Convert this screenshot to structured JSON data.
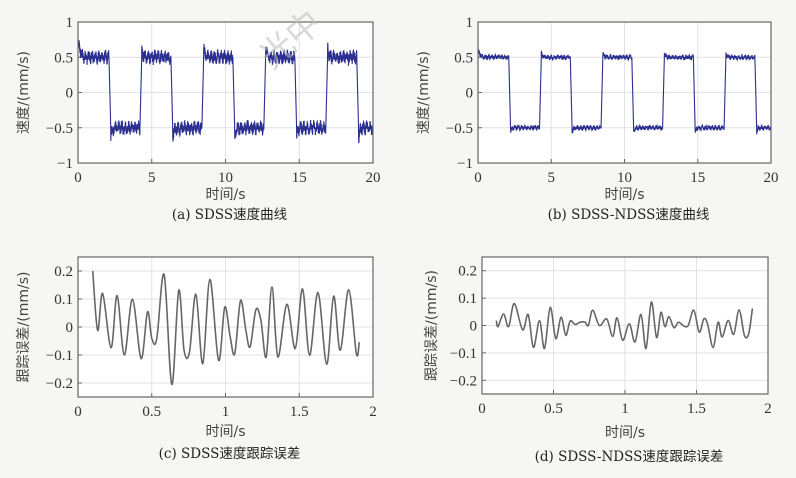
{
  "watermark": "光中",
  "chart_data": [
    {
      "id": "a",
      "type": "line",
      "caption": "(a) SDSS速度曲线",
      "xlabel": "时间/s",
      "ylabel": "速度/(mm/s)",
      "xlim": [
        0,
        20
      ],
      "ylim": [
        -1,
        1
      ],
      "xticks": [
        0,
        5,
        10,
        15,
        20
      ],
      "xtick_labels": [
        "0",
        "5",
        "10",
        "15",
        "20"
      ],
      "yticks": [
        1,
        0.5,
        0,
        -0.5,
        -1
      ],
      "ytick_labels": [
        "1",
        "0.5",
        "0",
        "−0.5",
        "−1"
      ],
      "grid": true,
      "color": "#2b2f8f",
      "signal": {
        "kind": "square-wave",
        "amplitude": 0.5,
        "half_period_s": 2.1,
        "noise": 0.07,
        "overshoot": 0.25
      }
    },
    {
      "id": "b",
      "type": "line",
      "caption": "(b) SDSS-NDSS速度曲线",
      "xlabel": "时间/s",
      "ylabel": "速度/(mm/s)",
      "xlim": [
        0,
        20
      ],
      "ylim": [
        -1,
        1
      ],
      "xticks": [
        0,
        5,
        10,
        15,
        20
      ],
      "xtick_labels": [
        "0",
        "5",
        "10",
        "15",
        "20"
      ],
      "yticks": [
        1,
        0.5,
        0,
        -0.5,
        -1
      ],
      "ytick_labels": [
        "1",
        "0.5",
        "0",
        "−0.5",
        "−1"
      ],
      "grid": true,
      "color": "#2b2f8f",
      "signal": {
        "kind": "square-wave",
        "amplitude": 0.5,
        "half_period_s": 2.1,
        "noise": 0.025,
        "overshoot": 0.1
      }
    },
    {
      "id": "c",
      "type": "line",
      "caption": "(c) SDSS速度跟踪误差",
      "xlabel": "时间/s",
      "ylabel": "跟踪误差/(mm/s)",
      "xlim": [
        0,
        2
      ],
      "ylim": [
        -0.25,
        0.25
      ],
      "xticks": [
        0,
        0.5,
        1,
        1.5,
        2
      ],
      "xtick_labels": [
        "0",
        "0.5",
        "1",
        "1.5",
        "2"
      ],
      "yticks": [
        0.2,
        0.1,
        0,
        -0.1,
        -0.2
      ],
      "ytick_labels": [
        "0.2",
        "0.1",
        "0",
        "−0.1",
        "−0.2"
      ],
      "grid": true,
      "color": "#666666",
      "x": [
        0.1,
        0.133,
        0.167,
        0.224,
        0.265,
        0.314,
        0.369,
        0.428,
        0.471,
        0.5,
        0.534,
        0.584,
        0.636,
        0.683,
        0.719,
        0.756,
        0.799,
        0.846,
        0.894,
        0.953,
        0.995,
        1.032,
        1.063,
        1.102,
        1.138,
        1.167,
        1.206,
        1.24,
        1.276,
        1.315,
        1.355,
        1.416,
        1.473,
        1.522,
        1.57,
        1.627,
        1.686,
        1.733,
        1.778,
        1.835,
        1.887,
        1.907
      ],
      "y": [
        0.2,
        -0.012,
        0.12,
        -0.074,
        0.112,
        -0.1,
        0.099,
        -0.113,
        0.054,
        -0.04,
        -0.042,
        0.187,
        -0.205,
        0.131,
        -0.083,
        -0.089,
        0.117,
        -0.131,
        0.17,
        -0.119,
        0.071,
        -0.036,
        -0.095,
        0.095,
        -0.012,
        -0.071,
        0.062,
        0.024,
        -0.107,
        0.143,
        -0.107,
        0.081,
        -0.077,
        0.136,
        -0.101,
        0.123,
        -0.133,
        0.11,
        -0.083,
        0.133,
        -0.095,
        -0.054
      ]
    },
    {
      "id": "d",
      "type": "line",
      "caption": "(d) SDSS-NDSS速度跟踪误差",
      "xlabel": "时间/s",
      "ylabel": "跟踪误差/(mm/s)",
      "xlim": [
        0,
        2
      ],
      "ylim": [
        -0.25,
        0.25
      ],
      "xticks": [
        0,
        0.5,
        1,
        1.5,
        2
      ],
      "xtick_labels": [
        "0",
        "0.5",
        "1",
        "1.5",
        "2"
      ],
      "yticks": [
        0.2,
        0.1,
        0,
        -0.1,
        -0.2
      ],
      "ytick_labels": [
        "0.2",
        "0.1",
        "0",
        "−0.1",
        "−0.2"
      ],
      "grid": true,
      "color": "#666666",
      "x": [
        0.1,
        0.112,
        0.151,
        0.186,
        0.226,
        0.284,
        0.323,
        0.36,
        0.402,
        0.437,
        0.477,
        0.516,
        0.553,
        0.586,
        0.616,
        0.651,
        0.686,
        0.721,
        0.744,
        0.774,
        0.821,
        0.872,
        0.914,
        0.944,
        0.984,
        1.03,
        1.07,
        1.112,
        1.147,
        1.184,
        1.221,
        1.251,
        1.279,
        1.307,
        1.342,
        1.374,
        1.412,
        1.442,
        1.481,
        1.519,
        1.551,
        1.577,
        1.616,
        1.651,
        1.679,
        1.721,
        1.76,
        1.798,
        1.835,
        1.865,
        1.891
      ],
      "y": [
        0.018,
        -0.004,
        0.042,
        -0.004,
        0.08,
        -0.016,
        0.04,
        -0.08,
        0.018,
        -0.084,
        0.066,
        -0.048,
        0.03,
        -0.036,
        0.016,
        0.004,
        0.012,
        0.012,
        0,
        0.056,
        0,
        0.024,
        -0.04,
        0.028,
        -0.054,
        0.006,
        -0.06,
        0.04,
        -0.084,
        0.086,
        -0.044,
        0.048,
        -0.004,
        0.032,
        -0.008,
        0.012,
        -0.002,
        0,
        0.056,
        -0.024,
        0.024,
        0.006,
        -0.08,
        0.012,
        -0.042,
        0.018,
        -0.032,
        0.057,
        -0.036,
        -0.03,
        0.062
      ]
    }
  ]
}
